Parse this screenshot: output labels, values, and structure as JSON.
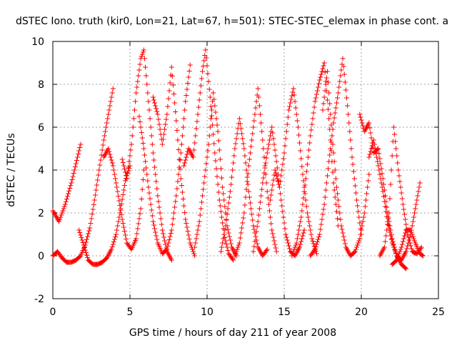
{
  "chart_data": {
    "type": "scatter",
    "title": "dSTEC Iono. truth (kir0, Lon=21, Lat=67, h=501): STEC-STEC_elemax in phase cont. a",
    "xlabel": "GPS time / hours of day 211 of year 2008",
    "ylabel": "dSTEC  / TECUs",
    "xlim": [
      0,
      25
    ],
    "ylim": [
      -2,
      10
    ],
    "xticks": [
      "0",
      "5",
      "10",
      "15",
      "20",
      "25"
    ],
    "yticks": [
      "-2",
      "0",
      "2",
      "4",
      "6",
      "8",
      "10"
    ],
    "grid": true,
    "marker": "plus",
    "color": "#ff0000",
    "legend": "none",
    "series": [
      {
        "x": [
          0.0,
          0.4,
          0.8,
          1.2,
          1.6,
          1.8
        ],
        "y": [
          2.1,
          1.6,
          2.4,
          3.4,
          4.6,
          5.2
        ]
      },
      {
        "x": [
          0.0,
          0.3,
          0.6,
          0.9,
          1.2,
          1.5,
          1.8,
          2.1,
          2.4,
          2.7,
          3.0,
          3.3,
          3.6,
          3.9
        ],
        "y": [
          0.0,
          0.2,
          -0.1,
          -0.3,
          -0.3,
          -0.2,
          0.0,
          0.5,
          1.3,
          2.6,
          4.0,
          5.4,
          6.6,
          7.8
        ]
      },
      {
        "x": [
          1.7,
          2.0,
          2.3,
          2.6,
          2.9,
          3.2,
          3.5,
          3.8,
          4.1,
          4.4,
          4.7,
          5.0
        ],
        "y": [
          1.2,
          0.5,
          -0.2,
          -0.4,
          -0.4,
          -0.3,
          -0.1,
          0.3,
          1.0,
          2.2,
          3.5,
          4.2
        ]
      },
      {
        "x": [
          3.3,
          3.6,
          3.9,
          4.2,
          4.5,
          4.8,
          5.1,
          5.4,
          5.7,
          5.9
        ],
        "y": [
          4.6,
          5.0,
          4.2,
          3.0,
          1.7,
          0.6,
          0.3,
          0.8,
          2.2,
          4.0
        ]
      },
      {
        "x": [
          4.5,
          4.8,
          5.1,
          5.4,
          5.7,
          5.9,
          6.2,
          6.5,
          6.8,
          7.1,
          7.4,
          7.7
        ],
        "y": [
          4.5,
          3.6,
          5.2,
          7.6,
          9.2,
          9.6,
          7.2,
          4.8,
          2.8,
          1.2,
          0.2,
          -0.2
        ]
      },
      {
        "x": [
          5.6,
          5.9,
          6.2,
          6.5,
          6.8,
          7.1,
          7.4,
          7.7,
          8.0,
          8.3,
          8.6,
          8.9
        ],
        "y": [
          6.5,
          5.0,
          3.2,
          1.6,
          0.6,
          0.1,
          0.3,
          1.2,
          2.8,
          4.8,
          7.2,
          8.9
        ]
      },
      {
        "x": [
          6.5,
          6.8,
          7.1,
          7.4,
          7.7,
          8.0,
          8.3,
          8.6,
          8.9,
          9.2
        ],
        "y": [
          7.4,
          6.6,
          5.2,
          6.6,
          8.8,
          6.3,
          3.6,
          1.7,
          0.6,
          0.0
        ]
      },
      {
        "x": [
          8.5,
          8.8,
          9.1,
          9.4,
          9.7,
          9.9,
          10.2,
          10.5,
          10.8,
          11.1,
          11.4,
          11.7
        ],
        "y": [
          4.2,
          5.0,
          4.6,
          6.6,
          8.6,
          9.6,
          7.4,
          4.8,
          2.6,
          1.0,
          0.1,
          -0.2
        ]
      },
      {
        "x": [
          9.2,
          9.5,
          9.8,
          10.1,
          10.4,
          10.7,
          11.0,
          11.3,
          11.6,
          11.9
        ],
        "y": [
          0.4,
          1.6,
          3.4,
          5.2,
          7.6,
          5.8,
          3.2,
          1.4,
          0.4,
          0.0
        ]
      },
      {
        "x": [
          10.9,
          11.2,
          11.5,
          11.8,
          12.1,
          12.4,
          12.7,
          13.0,
          13.3,
          13.6,
          13.9
        ],
        "y": [
          0.2,
          1.4,
          3.0,
          5.0,
          6.4,
          5.0,
          3.0,
          1.4,
          0.4,
          0.0,
          0.3
        ]
      },
      {
        "x": [
          11.8,
          12.1,
          12.4,
          12.7,
          13.0,
          13.3,
          13.6,
          13.9,
          14.2,
          14.5
        ],
        "y": [
          0.0,
          0.6,
          2.0,
          4.2,
          6.0,
          7.8,
          5.4,
          3.0,
          1.2,
          0.2
        ]
      },
      {
        "x": [
          13.0,
          13.3,
          13.6,
          13.9,
          14.2,
          14.5,
          14.8,
          15.1,
          15.4,
          15.7,
          16.0,
          16.3
        ],
        "y": [
          0.2,
          1.6,
          3.4,
          4.8,
          6.0,
          4.4,
          2.6,
          1.0,
          0.2,
          0.0,
          0.4,
          1.2
        ]
      },
      {
        "x": [
          14.1,
          14.4,
          14.7,
          15.0,
          15.3,
          15.6,
          15.9,
          16.2,
          16.5,
          16.8,
          17.1
        ],
        "y": [
          2.6,
          4.0,
          3.2,
          4.8,
          6.8,
          7.8,
          6.0,
          3.8,
          2.0,
          0.8,
          0.1
        ]
      },
      {
        "x": [
          15.5,
          15.8,
          16.1,
          16.4,
          16.7,
          17.0,
          17.3,
          17.6,
          17.9,
          18.2,
          18.5
        ],
        "y": [
          0.0,
          0.6,
          1.8,
          3.6,
          5.6,
          7.2,
          8.2,
          9.0,
          6.4,
          3.4,
          1.4
        ]
      },
      {
        "x": [
          16.7,
          17.0,
          17.3,
          17.6,
          17.9,
          18.2,
          18.5,
          18.8,
          19.1,
          19.4,
          19.7,
          20.0
        ],
        "y": [
          0.0,
          0.3,
          1.0,
          2.4,
          4.4,
          6.2,
          7.6,
          9.2,
          7.0,
          4.6,
          2.6,
          1.0
        ]
      },
      {
        "x": [
          17.5,
          17.8,
          18.1,
          18.4,
          18.7,
          19.0,
          19.3,
          19.6,
          19.9,
          20.2,
          20.5
        ],
        "y": [
          6.8,
          8.6,
          5.6,
          3.2,
          1.4,
          0.4,
          0.0,
          0.2,
          0.8,
          2.0,
          3.8
        ]
      },
      {
        "x": [
          19.9,
          20.2,
          20.5,
          20.8,
          21.1,
          21.4,
          21.7,
          22.0,
          22.3,
          22.6,
          22.9
        ],
        "y": [
          6.6,
          5.8,
          6.2,
          4.8,
          5.0,
          3.6,
          2.0,
          0.8,
          0.0,
          -0.4,
          -0.6
        ]
      },
      {
        "x": [
          20.5,
          20.8,
          21.1,
          21.4,
          21.7,
          22.0,
          22.3,
          22.6,
          22.9,
          23.2,
          23.5,
          23.8
        ],
        "y": [
          4.6,
          5.4,
          4.2,
          3.0,
          1.6,
          0.6,
          0.0,
          -0.2,
          0.2,
          1.0,
          2.2,
          3.4
        ]
      },
      {
        "x": [
          21.2,
          21.5,
          21.8,
          22.1,
          22.4,
          22.7,
          23.0,
          23.3,
          23.6,
          23.9
        ],
        "y": [
          0.0,
          0.4,
          2.0,
          6.0,
          4.0,
          2.4,
          1.0,
          0.2,
          0.1,
          0.4
        ]
      },
      {
        "x": [
          22.0,
          22.3,
          22.6,
          22.9,
          23.2,
          23.5,
          23.8,
          24.0
        ],
        "y": [
          -0.4,
          -0.2,
          0.4,
          1.2,
          1.2,
          0.6,
          0.1,
          0.0
        ]
      }
    ]
  }
}
